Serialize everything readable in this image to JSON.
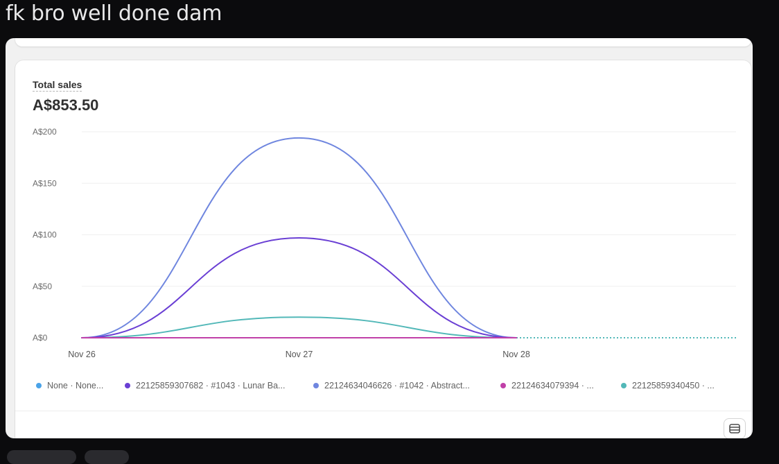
{
  "message": {
    "text": "fk bro well done dam"
  },
  "card": {
    "metric_label": "Total sales",
    "metric_value": "A$853.50"
  },
  "chart_data": {
    "type": "line",
    "title": "Total sales",
    "xlabel": "",
    "ylabel": "",
    "x": [
      "Nov 26",
      "Nov 27",
      "Nov 28"
    ],
    "y_ticks": [
      "A$0",
      "A$50",
      "A$100",
      "A$150",
      "A$200"
    ],
    "ylim": [
      0,
      200
    ],
    "grid": true,
    "smooth": true,
    "projection": "dotted flat line at A$0 after Nov 28",
    "series": [
      {
        "name": "None · None...",
        "color": "#4aa3e8",
        "values": [
          0,
          0,
          0
        ]
      },
      {
        "name": "22125859307682 · #1043 · Lunar Ba...",
        "color": "#6a3fd4",
        "values": [
          0,
          97,
          0
        ]
      },
      {
        "name": "22124634046626 · #1042 · Abstract...",
        "color": "#6f86df",
        "values": [
          0,
          194,
          0
        ]
      },
      {
        "name": "22124634079394 · ...",
        "color": "#c040a8",
        "values": [
          0,
          0,
          0
        ]
      },
      {
        "name": "22125859340450 · ...",
        "color": "#52b8b8",
        "values": [
          0,
          20,
          0
        ]
      }
    ]
  }
}
